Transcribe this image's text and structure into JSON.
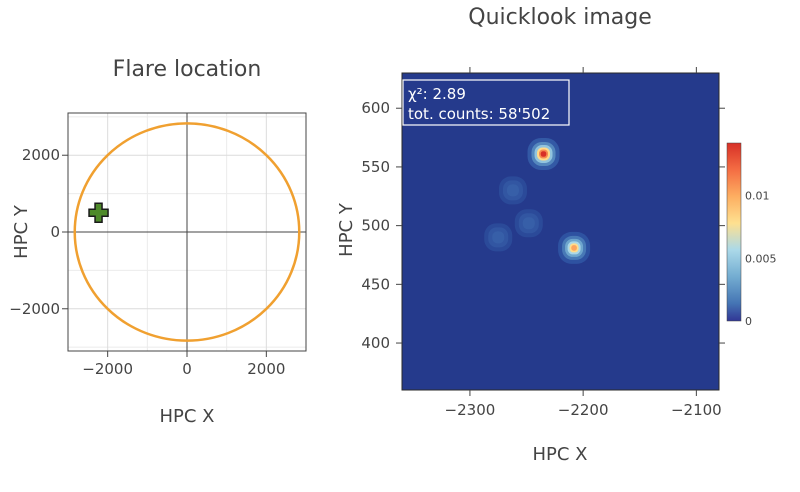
{
  "chart_data": [
    {
      "type": "scatter",
      "title": "Flare location",
      "xlabel": "HPC X",
      "ylabel": "HPC Y",
      "xlim": [
        -3000,
        3000
      ],
      "ylim": [
        -3100,
        3100
      ],
      "xticks": [
        -2000,
        0,
        2000
      ],
      "xtick_labels": [
        "−2000",
        "0",
        "2000"
      ],
      "yticks": [
        -2000,
        0,
        2000
      ],
      "ytick_labels": [
        "−2000",
        "0",
        "2000"
      ],
      "grid": true,
      "solar_disk_radius": 2830,
      "solar_disk_color": "#f0a030",
      "series": [
        {
          "x": [
            -2230
          ],
          "y": [
            500
          ],
          "marker": "cross",
          "color": "#4e8a2a"
        }
      ]
    },
    {
      "type": "heatmap",
      "title": "Quicklook image",
      "xlabel": "HPC X",
      "ylabel": "HPC Y",
      "xlim": [
        -2360,
        -2080
      ],
      "ylim": [
        360,
        630
      ],
      "xticks": [
        -2300,
        -2200,
        -2100
      ],
      "xtick_labels": [
        "−2300",
        "−2200",
        "−2100"
      ],
      "yticks": [
        400,
        450,
        500,
        550,
        600
      ],
      "ytick_labels": [
        "400",
        "450",
        "500",
        "550",
        "600"
      ],
      "colorscale": "RdYlBu_r",
      "zrange": [
        0,
        0.0142
      ],
      "colorbar_ticks": [
        0,
        0.005,
        0.01
      ],
      "colorbar_tick_labels": [
        "0",
        "0.005",
        "0.01"
      ],
      "sources": [
        {
          "x": -2235,
          "y": 561,
          "peak": 0.0142
        },
        {
          "x": -2208,
          "y": 481,
          "peak": 0.0105
        },
        {
          "x": -2275,
          "y": 490,
          "peak": 0.0009
        },
        {
          "x": -2248,
          "y": 502,
          "peak": 0.0008
        },
        {
          "x": -2262,
          "y": 530,
          "peak": 0.0005
        }
      ],
      "annotation": {
        "chi2": "χ²: 2.89",
        "counts": "tot. counts: 58'502"
      }
    }
  ]
}
